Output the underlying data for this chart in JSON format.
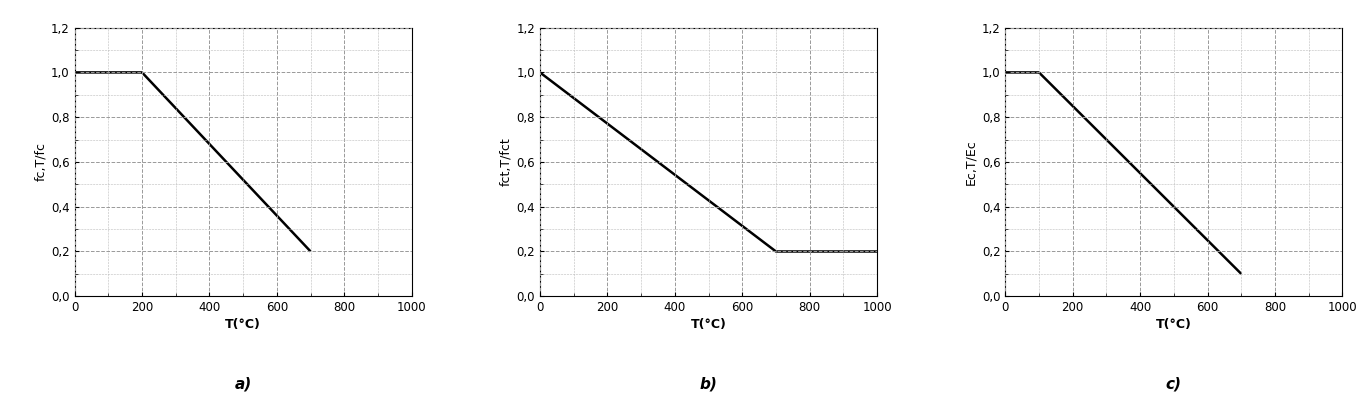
{
  "charts": [
    {
      "ylabel": "fc,T/fc",
      "xlabel": "T(°C)",
      "label": "a)",
      "line_x": [
        0,
        200,
        700
      ],
      "line_y": [
        1.0,
        1.0,
        0.2
      ]
    },
    {
      "ylabel": "fct,T/fct",
      "xlabel": "T(°C)",
      "label": "b)",
      "line_x": [
        0,
        0,
        700,
        1000
      ],
      "line_y": [
        1.0,
        1.0,
        0.2,
        0.2
      ]
    },
    {
      "ylabel": "Ec,T/Ec",
      "xlabel": "T(°C)",
      "label": "c)",
      "line_x": [
        0,
        100,
        700
      ],
      "line_y": [
        1.0,
        1.0,
        0.1
      ]
    }
  ],
  "xlim": [
    0,
    1000
  ],
  "ylim": [
    0.0,
    1.2
  ],
  "xticks": [
    0,
    200,
    400,
    600,
    800,
    1000
  ],
  "yticks": [
    0.0,
    0.2,
    0.4,
    0.6,
    0.8,
    1.0,
    1.2
  ],
  "line_color": "#000000",
  "line_width": 1.8,
  "grid_color": "#999999",
  "grid_linestyle": "--",
  "grid_linewidth": 0.7,
  "minor_grid_color": "#bbbbbb",
  "minor_grid_linestyle": "--",
  "minor_grid_linewidth": 0.4,
  "bg_color": "#ffffff",
  "tick_label_fontsize": 8.5,
  "axis_label_fontsize": 9,
  "subplot_label_fontsize": 11
}
